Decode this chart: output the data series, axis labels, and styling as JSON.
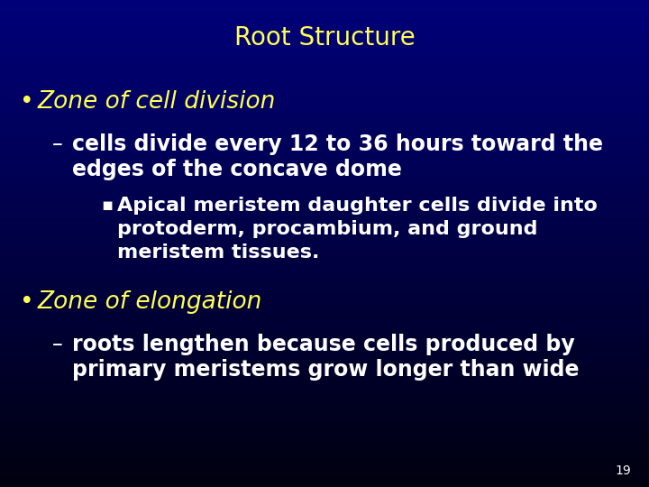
{
  "title": "Root Structure",
  "title_color": "#FFFF55",
  "title_fontsize": 20,
  "bg_top": "#000010",
  "bg_bottom": "#00007A",
  "bullet1_text": "Zone of cell division",
  "bullet1_color": "#FFFF55",
  "bullet1_fontsize": 19,
  "sub1_line1": "cells divide every 12 to 36 hours toward the",
  "sub1_line2": "edges of the concave dome",
  "sub1_color": "#FFFFFF",
  "sub1_fontsize": 17,
  "subsub1_line1": "Apical meristem daughter cells divide into",
  "subsub1_line2": "protoderm, procambium, and ground",
  "subsub1_line3": "meristem tissues.",
  "subsub1_color": "#FFFFFF",
  "subsub1_fontsize": 16,
  "bullet2_text": "Zone of elongation",
  "bullet2_color": "#FFFF55",
  "bullet2_fontsize": 19,
  "sub2_line1": "roots lengthen because cells produced by",
  "sub2_line2": "primary meristems grow longer than wide",
  "sub2_color": "#FFFFFF",
  "sub2_fontsize": 17,
  "page_num": "19",
  "page_num_color": "#FFFFFF",
  "page_num_fontsize": 10
}
